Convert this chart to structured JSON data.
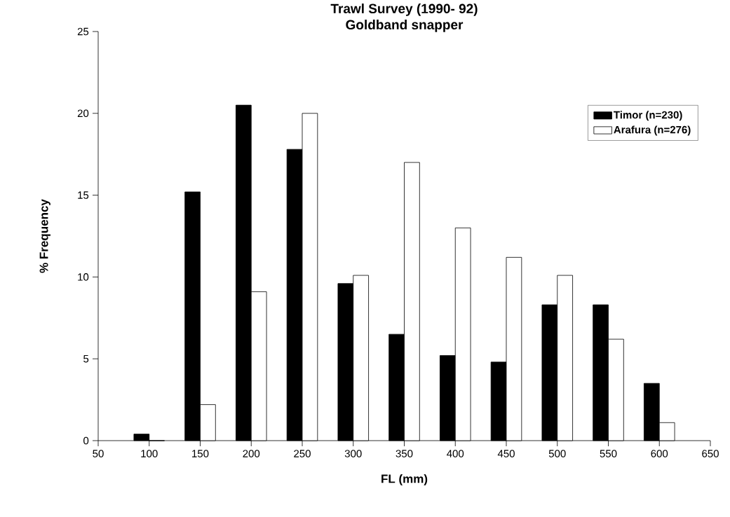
{
  "chart_data": {
    "type": "bar",
    "title": "Trawl Survey (1990- 92)",
    "subtitle": "Goldband snapper",
    "xlabel": "FL (mm)",
    "ylabel": "% Frequency",
    "x": [
      100,
      150,
      200,
      250,
      300,
      350,
      400,
      450,
      500,
      550,
      600
    ],
    "series": [
      {
        "name": "Timor (n=230)",
        "color": "#000000",
        "values": [
          0.4,
          15.2,
          20.5,
          17.8,
          9.6,
          6.5,
          5.2,
          4.8,
          8.3,
          8.3,
          3.5
        ]
      },
      {
        "name": "Arafura (n=276)",
        "color": "#ffffff",
        "values": [
          0,
          2.2,
          9.1,
          20.0,
          10.1,
          17.0,
          13.0,
          11.2,
          10.1,
          6.2,
          1.1
        ]
      }
    ],
    "xlim": [
      50,
      650
    ],
    "xticks": [
      50,
      100,
      150,
      200,
      250,
      300,
      350,
      400,
      450,
      500,
      550,
      600,
      650
    ],
    "ylim": [
      0,
      25
    ],
    "yticks": [
      0,
      5,
      10,
      15,
      20,
      25
    ],
    "grid": false,
    "legend": "top right"
  }
}
